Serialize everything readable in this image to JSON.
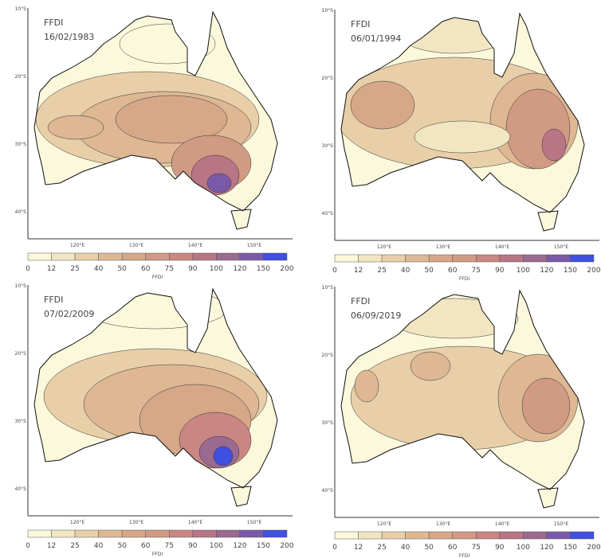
{
  "panels": [
    {
      "title": "FFDI",
      "date": "16/02/1983"
    },
    {
      "title": "FFDI",
      "date": "06/01/1994"
    },
    {
      "title": "FFDI",
      "date": "07/02/2009"
    },
    {
      "title": "FFDI",
      "date": "06/09/2019"
    }
  ],
  "lat_ticks": [
    "10°S",
    "20°S",
    "30°S",
    "40°S"
  ],
  "lon_ticks": [
    "120°E",
    "130°E",
    "140°E",
    "150°E"
  ],
  "colorbar": {
    "label": "FFDI",
    "levels": [
      0,
      12,
      25,
      40,
      50,
      60,
      75,
      90,
      100,
      120,
      150,
      200
    ],
    "colors": [
      "#fbf8dc",
      "#f2e6c2",
      "#e8cfa8",
      "#ddb893",
      "#d6a888",
      "#d19a84",
      "#c98683",
      "#b87585",
      "#9a6a90",
      "#7a5aa8",
      "#4050e0"
    ]
  }
}
